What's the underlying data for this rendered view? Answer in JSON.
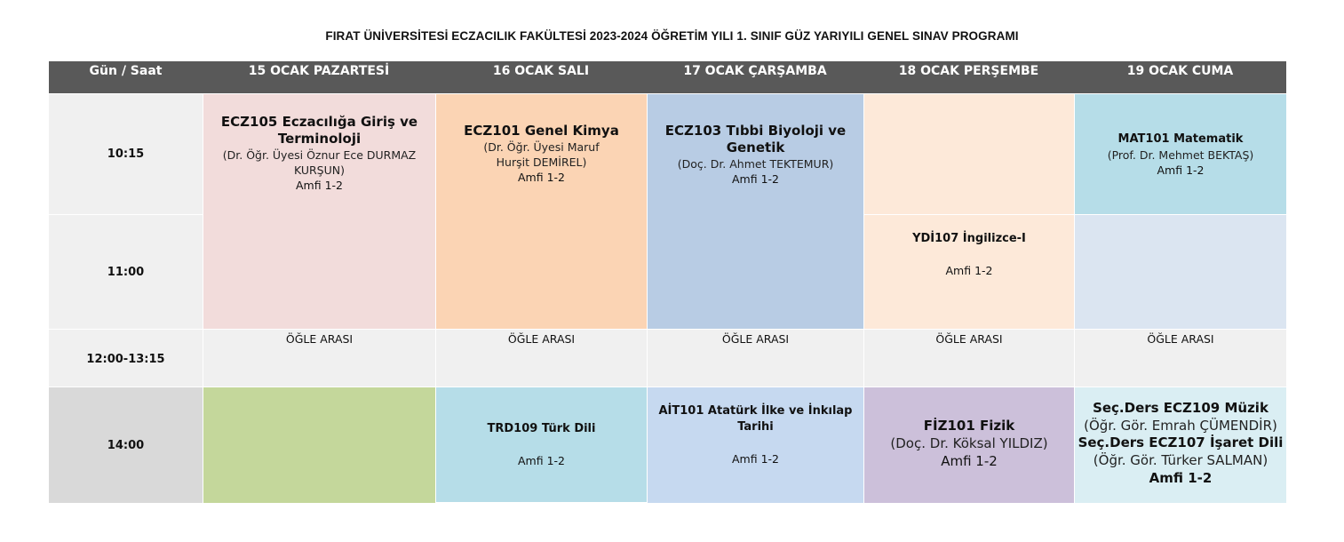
{
  "title": "FIRAT ÜNİVERSİTESİ ECZACILIK FAKÜLTESİ 2023-2024 ÖĞRETİM YILI 1. SINIF GÜZ YARIYILI GENEL SINAV PROGRAMI",
  "header": {
    "corner": "Gün / Saat",
    "days": [
      "15 OCAK PAZARTESİ",
      "16 OCAK SALI",
      "17 OCAK ÇARŞAMBA",
      "18 OCAK PERŞEMBE",
      "19 OCAK CUMA"
    ]
  },
  "times": [
    "10:15",
    "11:00",
    "12:00-13:15",
    "14:00"
  ],
  "lunch_label": "ÖĞLE ARASI",
  "exams": {
    "mon_morning": {
      "course": "ECZ105 Eczacılığa Giriş ve Terminoloji",
      "instructor": "(Dr. Öğr. Üyesi Öznur Ece DURMAZ KURŞUN)",
      "place": "Amfi 1-2"
    },
    "tue_morning": {
      "course": "ECZ101 Genel Kimya",
      "instructor": "(Dr. Öğr. Üyesi Maruf Hurşit DEMİREL)",
      "place": "Amfi 1-2"
    },
    "wed_morning": {
      "course": "ECZ103 Tıbbi Biyoloji ve Genetik",
      "instructor": "(Doç. Dr. Ahmet TEKTEMUR)",
      "place": "Amfi 1-2"
    },
    "thu_11": {
      "course": "YDİ107 İngilizce-I",
      "place": "Amfi 1-2"
    },
    "fri_1015": {
      "course": "MAT101 Matematik",
      "instructor": "(Prof. Dr. Mehmet BEKTAŞ)",
      "place": "Amfi 1-2"
    },
    "tue_afternoon": {
      "course": "TRD109 Türk Dili",
      "place": "Amfi 1-2"
    },
    "wed_afternoon": {
      "course": "AİT101 Atatürk İlke ve İnkılap Tarihi",
      "place": "Amfi 1-2"
    },
    "thu_afternoon": {
      "course": "FİZ101 Fizik",
      "instructor": "(Doç. Dr. Köksal YILDIZ)",
      "place": "Amfi 1-2"
    },
    "fri_afternoon": {
      "course1": "Seç.Ders ECZ109 Müzik",
      "instructor1": "(Öğr. Gör. Emrah ÇÜMENDİR)",
      "course2": "Seç.Ders ECZ107 İşaret Dili",
      "instructor2": "(Öğr. Gör. Türker SALMAN)",
      "place": "Amfi 1-2"
    }
  },
  "colors": {
    "header_bg": "#595959",
    "pink": "#f2dcdb",
    "peach": "#fbd4b4",
    "blue": "#b8cce4",
    "cream": "#fde9d9",
    "cyan": "#b6dde8",
    "light_blue": "#dbe5f1",
    "green": "#c4d79b",
    "lavender": "#ccc0da"
  }
}
